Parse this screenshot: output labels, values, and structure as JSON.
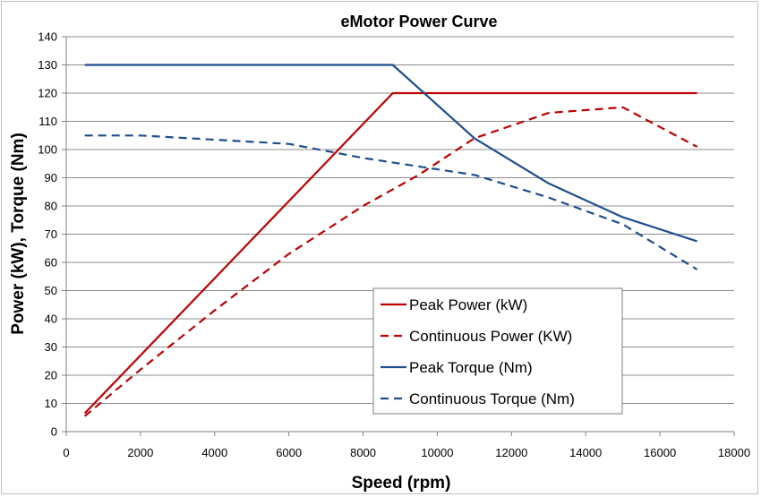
{
  "chart_data": {
    "type": "line",
    "title": "eMotor Power Curve",
    "xlabel": "Speed (rpm)",
    "ylabel": "Power (kW), Torque (Nm)",
    "xlim": [
      0,
      18000
    ],
    "ylim": [
      0,
      140
    ],
    "x_ticks": [
      "0",
      "2000",
      "4000",
      "6000",
      "8000",
      "10000",
      "12000",
      "14000",
      "16000",
      "18000"
    ],
    "y_ticks": [
      "0",
      "10",
      "20",
      "30",
      "40",
      "50",
      "60",
      "70",
      "80",
      "90",
      "100",
      "110",
      "120",
      "130",
      "140"
    ],
    "grid": true,
    "legend_position": "lower-center",
    "series": [
      {
        "name": "Peak Power (kW)",
        "color": "#c00000",
        "dash": "solid",
        "x": [
          500,
          8800,
          17000
        ],
        "y": [
          6.5,
          120,
          120
        ]
      },
      {
        "name": "Continuous Power (KW)",
        "color": "#c00000",
        "dash": "dashed",
        "x": [
          500,
          2000,
          4000,
          6000,
          8000,
          9500,
          11000,
          13000,
          15000,
          17000
        ],
        "y": [
          5.5,
          22,
          43,
          63,
          80,
          91,
          104,
          113,
          115,
          101
        ]
      },
      {
        "name": "Peak Torque (Nm)",
        "color": "#1f4e8c",
        "dash": "solid",
        "x": [
          500,
          8800,
          11000,
          13000,
          15000,
          17000
        ],
        "y": [
          130,
          130,
          104,
          88,
          76,
          67.5
        ]
      },
      {
        "name": "Continuous Torque (Nm)",
        "color": "#1f4e8c",
        "dash": "dashed",
        "x": [
          500,
          2000,
          4000,
          6000,
          8000,
          9500,
          11000,
          13000,
          15000,
          17000
        ],
        "y": [
          105,
          105,
          103.5,
          102,
          97,
          94,
          91,
          83,
          73.5,
          57.5
        ]
      }
    ]
  }
}
